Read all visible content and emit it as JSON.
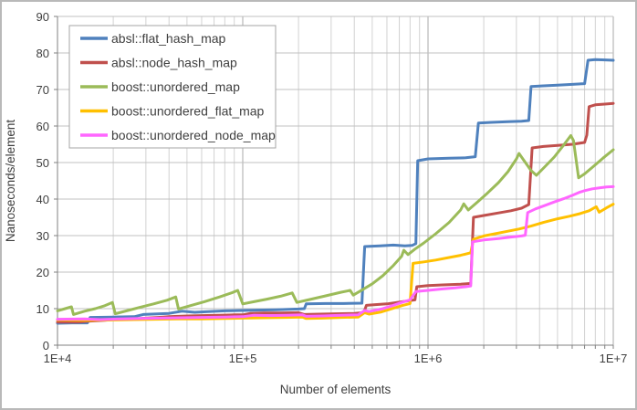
{
  "chart_data": {
    "type": "line",
    "title": "",
    "xlabel": "Number of elements",
    "ylabel": "Nanoseconds/element",
    "x_axis": {
      "scale": "log",
      "min": 10000,
      "max": 10000000,
      "major_ticks": [
        10000,
        100000,
        1000000,
        10000000
      ],
      "tick_labels": [
        "1E+4",
        "1E+5",
        "1E+6",
        "1E+7"
      ]
    },
    "y_axis": {
      "min": 0,
      "max": 90,
      "step": 10,
      "tick_labels": [
        "0",
        "10",
        "20",
        "30",
        "40",
        "50",
        "60",
        "70",
        "80",
        "90"
      ]
    },
    "grid": true,
    "legend_position": "top-left",
    "colors": {
      "grid_minor": "#d2d2d2",
      "grid_major": "#a8a8a8",
      "grid_h": "#c0c0c0",
      "axis": "#808080",
      "text": "#3f3f3f",
      "legend_border": "#a6a6a6"
    },
    "series": [
      {
        "name": "absl::flat_hash_map",
        "color": "#4F81BD",
        "points": [
          [
            10000,
            6.0
          ],
          [
            12000,
            6.1
          ],
          [
            14500,
            6.1
          ],
          [
            15000,
            7.6
          ],
          [
            20000,
            7.7
          ],
          [
            26000,
            7.8
          ],
          [
            29000,
            8.4
          ],
          [
            40000,
            8.7
          ],
          [
            47000,
            9.3
          ],
          [
            55000,
            9.0
          ],
          [
            65000,
            9.2
          ],
          [
            80000,
            9.4
          ],
          [
            100000,
            9.5
          ],
          [
            120000,
            9.6
          ],
          [
            150000,
            9.7
          ],
          [
            200000,
            9.9
          ],
          [
            215000,
            10.0
          ],
          [
            220000,
            11.3
          ],
          [
            280000,
            11.4
          ],
          [
            350000,
            11.4
          ],
          [
            440000,
            11.5
          ],
          [
            455000,
            27.0
          ],
          [
            550000,
            27.2
          ],
          [
            650000,
            27.4
          ],
          [
            750000,
            27.2
          ],
          [
            820000,
            27.3
          ],
          [
            860000,
            27.8
          ],
          [
            880000,
            50.5
          ],
          [
            1000000,
            51.0
          ],
          [
            1300000,
            51.2
          ],
          [
            1600000,
            51.3
          ],
          [
            1800000,
            51.6
          ],
          [
            1870000,
            60.8
          ],
          [
            2200000,
            61.0
          ],
          [
            2700000,
            61.2
          ],
          [
            3200000,
            61.3
          ],
          [
            3500000,
            61.5
          ],
          [
            3600000,
            70.8
          ],
          [
            4200000,
            71.0
          ],
          [
            5000000,
            71.2
          ],
          [
            6000000,
            71.4
          ],
          [
            7000000,
            71.6
          ],
          [
            7300000,
            78.0
          ],
          [
            8000000,
            78.2
          ],
          [
            9000000,
            78.1
          ],
          [
            10000000,
            78.0
          ]
        ]
      },
      {
        "name": "absl::node_hash_map",
        "color": "#C0504D",
        "points": [
          [
            10000,
            6.3
          ],
          [
            13000,
            6.3
          ],
          [
            15000,
            6.6
          ],
          [
            18000,
            6.8
          ],
          [
            20000,
            7.0
          ],
          [
            25000,
            7.1
          ],
          [
            30000,
            7.4
          ],
          [
            35000,
            7.6
          ],
          [
            40000,
            7.8
          ],
          [
            50000,
            8.0
          ],
          [
            60000,
            8.1
          ],
          [
            75000,
            8.2
          ],
          [
            90000,
            8.3
          ],
          [
            100000,
            8.3
          ],
          [
            110000,
            8.7
          ],
          [
            130000,
            8.8
          ],
          [
            160000,
            8.8
          ],
          [
            200000,
            8.9
          ],
          [
            215000,
            8.4
          ],
          [
            260000,
            8.5
          ],
          [
            320000,
            8.6
          ],
          [
            400000,
            8.7
          ],
          [
            450000,
            8.9
          ],
          [
            465000,
            10.9
          ],
          [
            520000,
            11.1
          ],
          [
            600000,
            11.3
          ],
          [
            700000,
            11.8
          ],
          [
            800000,
            12.2
          ],
          [
            850000,
            12.4
          ],
          [
            870000,
            16.0
          ],
          [
            1000000,
            16.3
          ],
          [
            1200000,
            16.5
          ],
          [
            1500000,
            16.7
          ],
          [
            1700000,
            16.9
          ],
          [
            1760000,
            35.0
          ],
          [
            2000000,
            35.5
          ],
          [
            2400000,
            36.2
          ],
          [
            2800000,
            36.8
          ],
          [
            3200000,
            37.5
          ],
          [
            3500000,
            38.5
          ],
          [
            3650000,
            54.0
          ],
          [
            4200000,
            54.4
          ],
          [
            5000000,
            54.7
          ],
          [
            6000000,
            55.0
          ],
          [
            7000000,
            55.5
          ],
          [
            7200000,
            57.5
          ],
          [
            7400000,
            65.3
          ],
          [
            8000000,
            65.8
          ],
          [
            9000000,
            66.0
          ],
          [
            10000000,
            66.2
          ]
        ]
      },
      {
        "name": "boost::unordered_map",
        "color": "#9BBB59",
        "points": [
          [
            10000,
            9.4
          ],
          [
            11000,
            10.0
          ],
          [
            11900,
            10.5
          ],
          [
            12200,
            8.4
          ],
          [
            14000,
            9.3
          ],
          [
            16000,
            10.0
          ],
          [
            18000,
            10.8
          ],
          [
            19800,
            11.7
          ],
          [
            20500,
            8.6
          ],
          [
            24000,
            9.5
          ],
          [
            28000,
            10.4
          ],
          [
            33000,
            11.3
          ],
          [
            39000,
            12.3
          ],
          [
            43500,
            13.2
          ],
          [
            45000,
            9.9
          ],
          [
            52000,
            10.8
          ],
          [
            62000,
            11.9
          ],
          [
            75000,
            13.2
          ],
          [
            88000,
            14.4
          ],
          [
            94000,
            15.0
          ],
          [
            100000,
            11.3
          ],
          [
            115000,
            11.9
          ],
          [
            135000,
            12.6
          ],
          [
            160000,
            13.4
          ],
          [
            185000,
            14.3
          ],
          [
            196000,
            11.7
          ],
          [
            230000,
            12.5
          ],
          [
            280000,
            13.5
          ],
          [
            340000,
            14.5
          ],
          [
            380000,
            15.0
          ],
          [
            395000,
            13.7
          ],
          [
            430000,
            14.8
          ],
          [
            500000,
            16.8
          ],
          [
            570000,
            19.0
          ],
          [
            650000,
            21.8
          ],
          [
            720000,
            24.3
          ],
          [
            740000,
            26.0
          ],
          [
            780000,
            24.8
          ],
          [
            850000,
            26.3
          ],
          [
            950000,
            28.0
          ],
          [
            1100000,
            30.5
          ],
          [
            1300000,
            33.6
          ],
          [
            1500000,
            37.0
          ],
          [
            1560000,
            38.7
          ],
          [
            1650000,
            37.0
          ],
          [
            1850000,
            39.2
          ],
          [
            2100000,
            41.7
          ],
          [
            2400000,
            44.5
          ],
          [
            2700000,
            47.5
          ],
          [
            3000000,
            51.0
          ],
          [
            3100000,
            52.5
          ],
          [
            3300000,
            50.5
          ],
          [
            3600000,
            47.8
          ],
          [
            3850000,
            46.5
          ],
          [
            4300000,
            49.0
          ],
          [
            4800000,
            51.5
          ],
          [
            5400000,
            54.8
          ],
          [
            5900000,
            57.4
          ],
          [
            6100000,
            56.0
          ],
          [
            6500000,
            45.8
          ],
          [
            7000000,
            46.9
          ],
          [
            7800000,
            48.9
          ],
          [
            8800000,
            51.2
          ],
          [
            10000000,
            53.5
          ]
        ]
      },
      {
        "name": "boost::unordered_flat_map",
        "color": "#FFC000",
        "points": [
          [
            10000,
            6.9
          ],
          [
            14000,
            6.8
          ],
          [
            20000,
            6.9
          ],
          [
            26000,
            7.0
          ],
          [
            34000,
            7.1
          ],
          [
            45000,
            7.2
          ],
          [
            60000,
            7.2
          ],
          [
            80000,
            7.3
          ],
          [
            100000,
            7.4
          ],
          [
            130000,
            7.5
          ],
          [
            170000,
            7.6
          ],
          [
            210000,
            7.7
          ],
          [
            220000,
            7.3
          ],
          [
            270000,
            7.4
          ],
          [
            340000,
            7.6
          ],
          [
            420000,
            7.7
          ],
          [
            455000,
            8.9
          ],
          [
            480000,
            8.5
          ],
          [
            560000,
            9.1
          ],
          [
            650000,
            10.1
          ],
          [
            730000,
            10.9
          ],
          [
            800000,
            11.4
          ],
          [
            830000,
            22.4
          ],
          [
            950000,
            22.8
          ],
          [
            1100000,
            23.3
          ],
          [
            1300000,
            24.0
          ],
          [
            1500000,
            24.6
          ],
          [
            1700000,
            25.3
          ],
          [
            1760000,
            29.0
          ],
          [
            2000000,
            29.9
          ],
          [
            2300000,
            30.5
          ],
          [
            2700000,
            31.2
          ],
          [
            3100000,
            31.8
          ],
          [
            3600000,
            32.6
          ],
          [
            4200000,
            33.6
          ],
          [
            5000000,
            34.6
          ],
          [
            5800000,
            35.3
          ],
          [
            6600000,
            36.0
          ],
          [
            7400000,
            36.8
          ],
          [
            7900000,
            37.6
          ],
          [
            8100000,
            37.9
          ],
          [
            8400000,
            36.4
          ],
          [
            9200000,
            37.6
          ],
          [
            10000000,
            38.6
          ]
        ]
      },
      {
        "name": "boost::unordered_node_map",
        "color": "#FF66FF",
        "points": [
          [
            10000,
            7.1
          ],
          [
            14000,
            7.2
          ],
          [
            17000,
            7.0
          ],
          [
            22000,
            7.2
          ],
          [
            28000,
            7.3
          ],
          [
            36000,
            7.4
          ],
          [
            46000,
            7.5
          ],
          [
            60000,
            7.6
          ],
          [
            80000,
            7.7
          ],
          [
            100000,
            7.8
          ],
          [
            115000,
            8.2
          ],
          [
            140000,
            8.1
          ],
          [
            175000,
            8.2
          ],
          [
            210000,
            8.3
          ],
          [
            220000,
            7.9
          ],
          [
            270000,
            8.0
          ],
          [
            340000,
            8.2
          ],
          [
            420000,
            8.3
          ],
          [
            455000,
            9.5
          ],
          [
            480000,
            9.2
          ],
          [
            560000,
            9.9
          ],
          [
            650000,
            10.9
          ],
          [
            730000,
            11.8
          ],
          [
            800000,
            12.4
          ],
          [
            860000,
            14.7
          ],
          [
            1000000,
            15.0
          ],
          [
            1200000,
            15.4
          ],
          [
            1400000,
            15.7
          ],
          [
            1600000,
            16.0
          ],
          [
            1700000,
            16.2
          ],
          [
            1740000,
            28.3
          ],
          [
            2000000,
            28.8
          ],
          [
            2400000,
            29.2
          ],
          [
            2800000,
            29.6
          ],
          [
            3200000,
            29.9
          ],
          [
            3350000,
            30.1
          ],
          [
            3450000,
            36.3
          ],
          [
            3800000,
            37.3
          ],
          [
            4300000,
            38.3
          ],
          [
            4800000,
            39.2
          ],
          [
            5400000,
            40.1
          ],
          [
            6000000,
            41.0
          ],
          [
            6600000,
            41.9
          ],
          [
            7000000,
            42.3
          ],
          [
            7700000,
            42.8
          ],
          [
            8500000,
            43.1
          ],
          [
            9200000,
            43.3
          ],
          [
            10000000,
            43.4
          ]
        ]
      }
    ]
  }
}
